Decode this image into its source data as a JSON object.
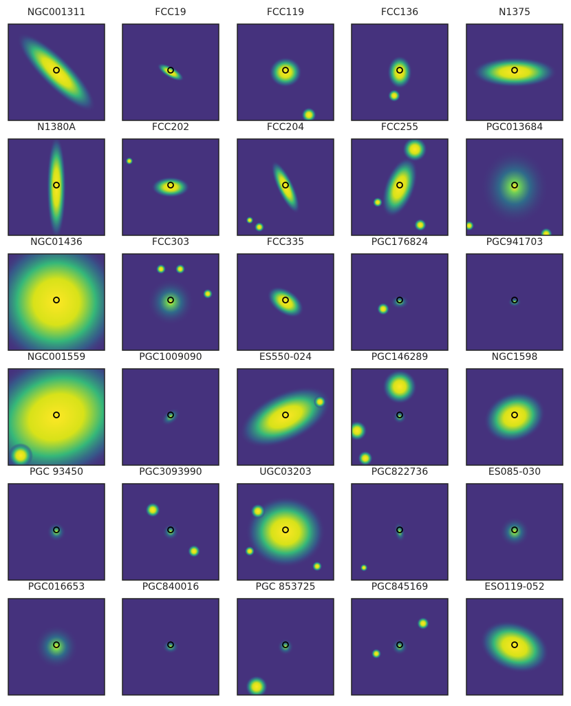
{
  "panels": [
    {
      "title": "NGC001311"
    },
    {
      "title": "FCC19"
    },
    {
      "title": "FCC119"
    },
    {
      "title": "FCC136"
    },
    {
      "title": "N1375"
    },
    {
      "title": "N1380A"
    },
    {
      "title": "FCC202"
    },
    {
      "title": "FCC204"
    },
    {
      "title": "FCC255"
    },
    {
      "title": "PGC013684"
    },
    {
      "title": "NGC01436"
    },
    {
      "title": "FCC303"
    },
    {
      "title": "FCC335"
    },
    {
      "title": "PGC176824"
    },
    {
      "title": "PGC941703"
    },
    {
      "title": "NGC001559"
    },
    {
      "title": "PGC1009090"
    },
    {
      "title": "ES550-024"
    },
    {
      "title": "PGC146289"
    },
    {
      "title": "NGC1598"
    },
    {
      "title": "PGC 93450"
    },
    {
      "title": "PGC3093990"
    },
    {
      "title": "UGC03203"
    },
    {
      "title": "PGC822736"
    },
    {
      "title": "ES085-030"
    },
    {
      "title": "PGC016653"
    },
    {
      "title": "PGC840016"
    },
    {
      "title": "PGC 853725"
    },
    {
      "title": "PGC845169"
    },
    {
      "title": "ESO119-052"
    }
  ]
}
